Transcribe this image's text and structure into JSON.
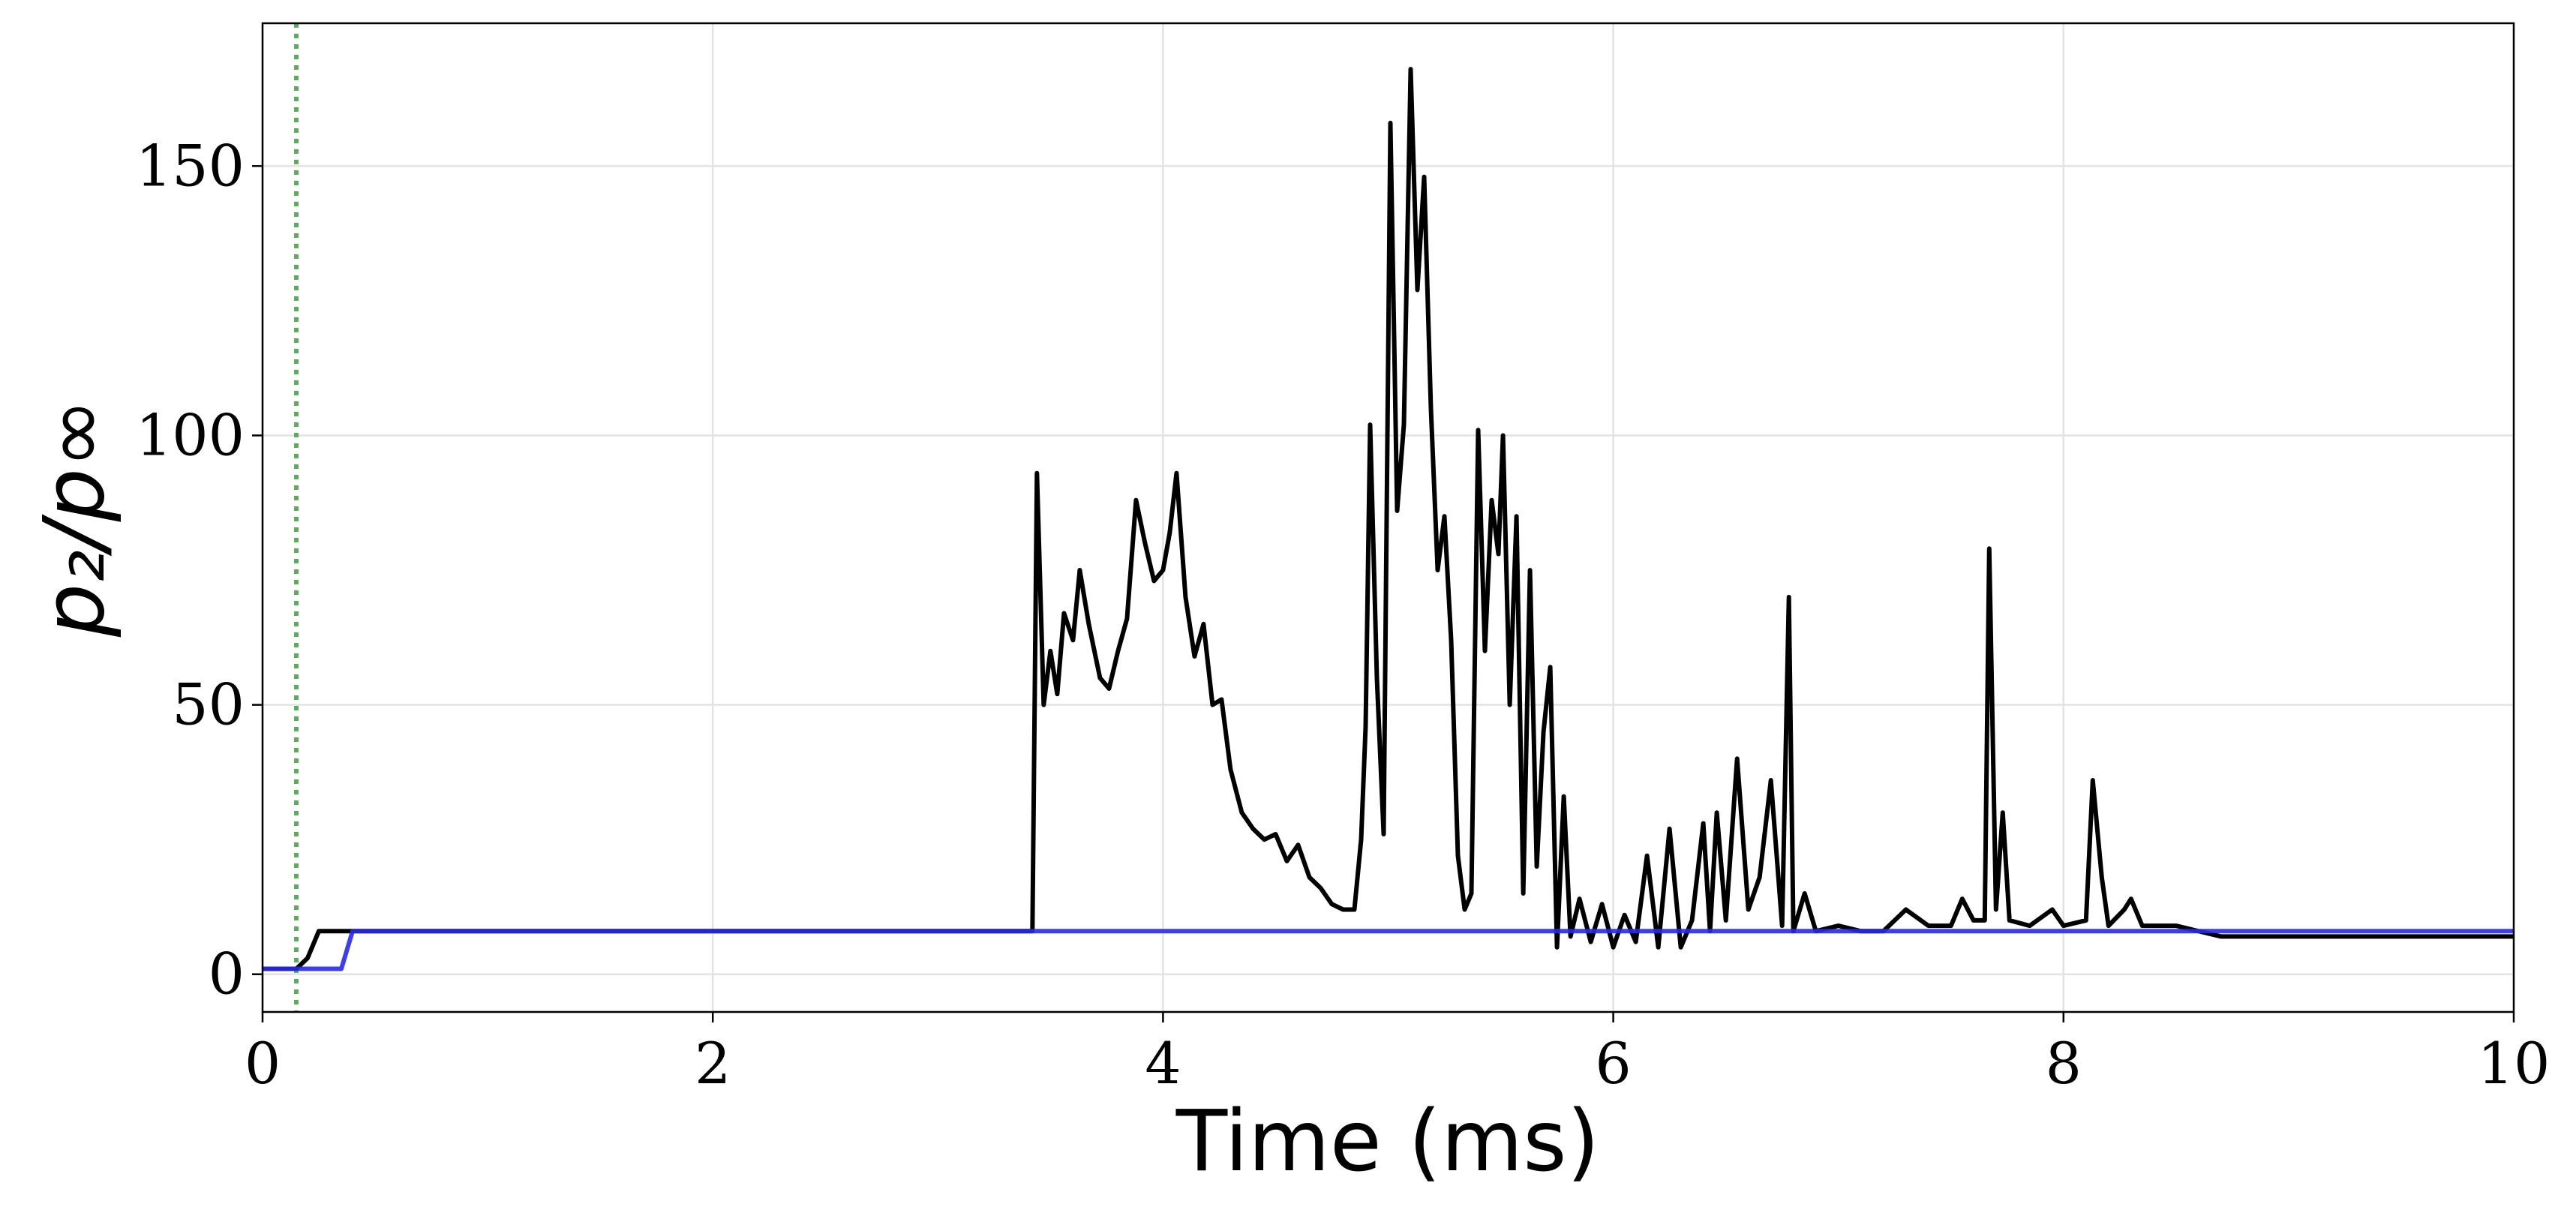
{
  "chart_data": {
    "type": "line",
    "xlabel": "Time (ms)",
    "ylabel": "p₂/p∞",
    "x": [
      0,
      0.15,
      0.2,
      0.25,
      0.35,
      0.4,
      1,
      2,
      3,
      3.42,
      3.44,
      3.47,
      3.5,
      3.53,
      3.56,
      3.6,
      3.63,
      3.67,
      3.72,
      3.76,
      3.8,
      3.84,
      3.88,
      3.92,
      3.96,
      4.0,
      4.03,
      4.06,
      4.1,
      4.14,
      4.18,
      4.22,
      4.26,
      4.3,
      4.35,
      4.4,
      4.45,
      4.5,
      4.55,
      4.6,
      4.65,
      4.7,
      4.75,
      4.8,
      4.85,
      4.88,
      4.9,
      4.92,
      4.95,
      4.98,
      5.01,
      5.04,
      5.07,
      5.1,
      5.13,
      5.16,
      5.19,
      5.22,
      5.25,
      5.28,
      5.31,
      5.34,
      5.37,
      5.4,
      5.43,
      5.46,
      5.49,
      5.51,
      5.54,
      5.57,
      5.6,
      5.63,
      5.66,
      5.69,
      5.72,
      5.75,
      5.78,
      5.81,
      5.85,
      5.9,
      5.95,
      6.0,
      6.05,
      6.1,
      6.15,
      6.2,
      6.25,
      6.3,
      6.35,
      6.4,
      6.43,
      6.46,
      6.5,
      6.55,
      6.6,
      6.65,
      6.7,
      6.75,
      6.78,
      6.8,
      6.85,
      6.9,
      7.0,
      7.1,
      7.2,
      7.3,
      7.4,
      7.5,
      7.55,
      7.6,
      7.65,
      7.67,
      7.7,
      7.73,
      7.76,
      7.85,
      7.95,
      8.0,
      8.1,
      8.13,
      8.17,
      8.2,
      8.27,
      8.3,
      8.35,
      8.5,
      8.7,
      9.0,
      9.3,
      9.6,
      10.0
    ],
    "series": [
      {
        "color": "#000000",
        "values": [
          1,
          1,
          3,
          8,
          8,
          8,
          8,
          8,
          8,
          8,
          93,
          50,
          60,
          52,
          67,
          62,
          75,
          65,
          55,
          53,
          60,
          66,
          88,
          80,
          73,
          75,
          82,
          93,
          70,
          59,
          65,
          50,
          51,
          38,
          30,
          27,
          25,
          26,
          21,
          24,
          18,
          16,
          13,
          12,
          12,
          25,
          46,
          102,
          55,
          26,
          158,
          86,
          102,
          168,
          127,
          148,
          105,
          75,
          85,
          62,
          22,
          12,
          15,
          101,
          60,
          88,
          78,
          100,
          50,
          85,
          15,
          75,
          20,
          45,
          57,
          5,
          33,
          7,
          14,
          6,
          13,
          5,
          11,
          6,
          22,
          5,
          27,
          5,
          10,
          28,
          8,
          30,
          10,
          40,
          12,
          18,
          36,
          9,
          70,
          8,
          15,
          8,
          9,
          8,
          8,
          12,
          9,
          9,
          14,
          10,
          10,
          79,
          12,
          30,
          10,
          9,
          12,
          9,
          10,
          36,
          18,
          9,
          12,
          14,
          9,
          9,
          7,
          7,
          7,
          7,
          7
        ]
      },
      {
        "color": "#2a2ae6",
        "values": [
          1,
          1,
          1,
          1,
          1,
          8,
          8,
          8,
          8,
          8,
          8,
          8,
          8,
          8,
          8,
          8,
          8,
          8,
          8,
          8,
          8,
          8,
          8,
          8,
          8,
          8,
          8,
          8,
          8,
          8,
          8,
          8,
          8,
          8,
          8,
          8,
          8,
          8,
          8,
          8,
          8,
          8,
          8,
          8,
          8,
          8,
          8,
          8,
          8,
          8,
          8,
          8,
          8,
          8,
          8,
          8,
          8,
          8,
          8,
          8,
          8,
          8,
          8,
          8,
          8,
          8,
          8,
          8,
          8,
          8,
          8,
          8,
          8,
          8,
          8,
          8,
          8,
          8,
          8,
          8,
          8,
          8,
          8,
          8,
          8,
          8,
          8,
          8,
          8,
          8,
          8,
          8,
          8,
          8,
          8,
          8,
          8,
          8,
          8,
          8,
          8,
          8,
          8,
          8,
          8,
          8,
          8,
          8,
          8,
          8,
          8,
          8,
          8,
          8,
          8,
          8,
          8,
          8,
          8,
          8,
          8,
          8,
          8,
          8,
          8,
          8,
          8,
          8,
          8,
          8,
          8
        ]
      }
    ],
    "vline": {
      "x": 0.15,
      "color": "#5aad5a"
    },
    "xlim": [
      0,
      10
    ],
    "xticks": [
      0,
      2,
      4,
      6,
      8,
      10
    ],
    "ylim": [
      -7,
      176.5
    ],
    "yticks": [
      0,
      50,
      100,
      150
    ],
    "grid": true
  }
}
